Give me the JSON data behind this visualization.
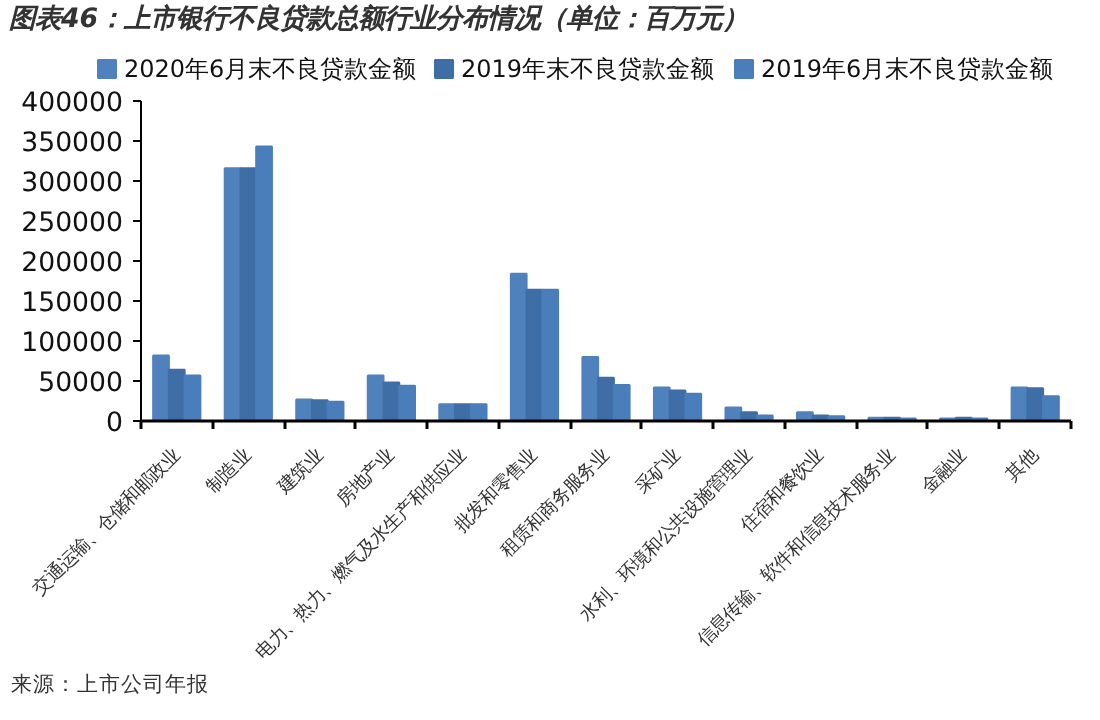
{
  "chart_data": {
    "type": "bar",
    "title": "图表46：上市银行不良贷款总额行业分布情况（单位：百万元）",
    "categories": [
      "交通运输、仓储和邮政业",
      "制造业",
      "建筑业",
      "房地产业",
      "电力、热力、燃气及水生产和供应业",
      "批发和零售业",
      "租赁和商务服务业",
      "采矿业",
      "水利、环境和公共设施管理业",
      "住宿和餐饮业",
      "信息传输、软件和信息技术服务业",
      "金融业",
      "其他"
    ],
    "series": [
      {
        "name": "2020年6月末不良贷款金额",
        "color": "#4f81bd",
        "values": [
          82000,
          316000,
          27000,
          57000,
          21000,
          184000,
          80000,
          42000,
          17000,
          11000,
          4000,
          3000,
          42000
        ]
      },
      {
        "name": "2019年末不良贷款金额",
        "color": "#3f6ea6",
        "values": [
          64000,
          316000,
          26000,
          48000,
          21000,
          164000,
          54000,
          38000,
          11000,
          7000,
          4000,
          4000,
          41000
        ]
      },
      {
        "name": "2019年6月末不良贷款金额",
        "color": "#4a7ebb",
        "values": [
          57000,
          343000,
          24000,
          44000,
          21000,
          164000,
          45000,
          34000,
          7000,
          6000,
          3000,
          3000,
          31000
        ]
      }
    ],
    "ylim": [
      0,
      400000
    ],
    "yticks": [
      0,
      50000,
      100000,
      150000,
      200000,
      250000,
      300000,
      350000,
      400000
    ],
    "grid": false,
    "legend": "top",
    "annotations": [
      "来源：上市公司年报"
    ]
  }
}
